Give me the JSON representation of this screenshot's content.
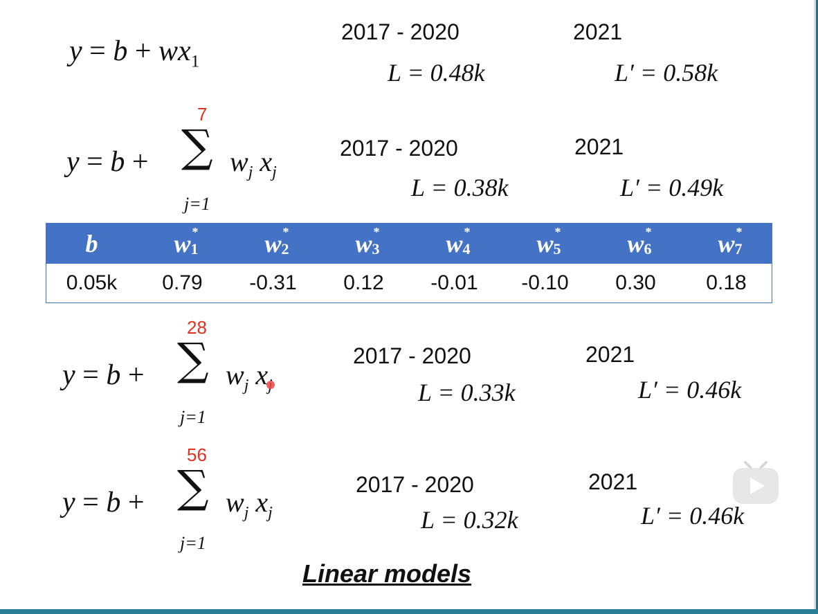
{
  "models": [
    {
      "formula": {
        "lhs": "y = b + w",
        "var": "x",
        "sub": "1"
      },
      "train_period": "2017 - 2020",
      "train_loss": "L = 0.48k",
      "test_year": "2021",
      "test_loss": "L′ = 0.58k"
    },
    {
      "formula": {
        "lhs": "y = b +",
        "upper": "7",
        "lower": "j=1",
        "term": "w",
        "sub": "j",
        "term2": "x"
      },
      "train_period": "2017 - 2020",
      "train_loss": "L = 0.38k",
      "test_year": "2021",
      "test_loss": "L′ = 0.49k"
    },
    {
      "formula": {
        "lhs": "y = b +",
        "upper": "28",
        "lower": "j=1",
        "term": "w",
        "sub": "j",
        "term2": "x"
      },
      "train_period": "2017 - 2020",
      "train_loss": "L = 0.33k",
      "test_year": "2021",
      "test_loss": "L′ = 0.46k"
    },
    {
      "formula": {
        "lhs": "y = b +",
        "upper": "56",
        "lower": "j=1",
        "term": "w",
        "sub": "j",
        "term2": "x"
      },
      "train_period": "2017 - 2020",
      "train_loss": "L = 0.32k",
      "test_year": "2021",
      "test_loss": "L′ = 0.46k"
    }
  ],
  "weights_table": {
    "headers": [
      {
        "sym": "b",
        "star": "",
        "sub": ""
      },
      {
        "sym": "w",
        "star": "*",
        "sub": "1"
      },
      {
        "sym": "w",
        "star": "*",
        "sub": "2"
      },
      {
        "sym": "w",
        "star": "*",
        "sub": "3"
      },
      {
        "sym": "w",
        "star": "*",
        "sub": "4"
      },
      {
        "sym": "w",
        "star": "*",
        "sub": "5"
      },
      {
        "sym": "w",
        "star": "*",
        "sub": "6"
      },
      {
        "sym": "w",
        "star": "*",
        "sub": "7"
      }
    ],
    "values": [
      "0.05k",
      "0.79",
      "-0.31",
      "0.12",
      "-0.01",
      "-0.10",
      "0.30",
      "0.18"
    ],
    "header_color": "#4472c4"
  },
  "title": "Linear models",
  "overlay": {
    "play_icon": "bilibili-play-icon"
  }
}
